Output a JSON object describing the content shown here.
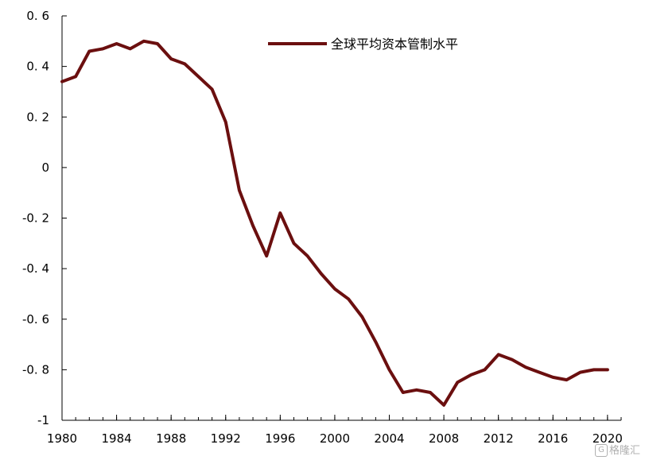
{
  "chart_data": {
    "type": "line",
    "title": "",
    "xlabel": "",
    "ylabel": "",
    "xlim": [
      1980,
      2021
    ],
    "ylim": [
      -1,
      0.6
    ],
    "x_ticks": [
      "1980",
      "1984",
      "1988",
      "1992",
      "1996",
      "2000",
      "2004",
      "2008",
      "2012",
      "2016",
      "2020"
    ],
    "y_ticks": [
      "0. 6",
      "0. 4",
      "0. 2",
      "0",
      "-0. 2",
      "-0. 4",
      "-0. 6",
      "-0. 8",
      "-1"
    ],
    "legend_position": "top-right",
    "grid": false,
    "line_color": "#6b0f0f",
    "series": [
      {
        "name": "全球平均资本管制水平",
        "x": [
          1980,
          1981,
          1982,
          1983,
          1984,
          1985,
          1986,
          1987,
          1988,
          1989,
          1990,
          1991,
          1992,
          1993,
          1994,
          1995,
          1996,
          1997,
          1998,
          1999,
          2000,
          2001,
          2002,
          2003,
          2004,
          2005,
          2006,
          2007,
          2008,
          2009,
          2010,
          2011,
          2012,
          2013,
          2014,
          2015,
          2016,
          2017,
          2018,
          2019,
          2020
        ],
        "values": [
          0.34,
          0.36,
          0.46,
          0.47,
          0.49,
          0.47,
          0.5,
          0.49,
          0.43,
          0.41,
          0.36,
          0.31,
          0.18,
          -0.09,
          -0.23,
          -0.35,
          -0.18,
          -0.3,
          -0.35,
          -0.42,
          -0.48,
          -0.52,
          -0.59,
          -0.69,
          -0.8,
          -0.89,
          -0.88,
          -0.89,
          -0.94,
          -0.85,
          -0.82,
          -0.8,
          -0.74,
          -0.76,
          -0.79,
          -0.81,
          -0.83,
          -0.84,
          -0.81,
          -0.8,
          -0.8
        ]
      }
    ]
  },
  "watermark": {
    "icon": "G",
    "text": "格隆汇"
  }
}
